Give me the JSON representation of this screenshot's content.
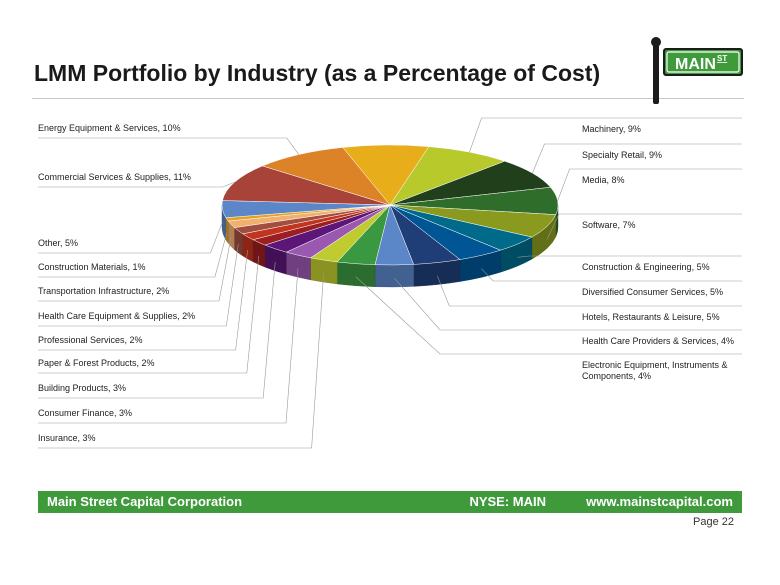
{
  "slide": {
    "title": "LMM Portfolio by Industry (as a Percentage of Cost)",
    "logo_text": "MAIN",
    "logo_superscript": "ST",
    "footer_company": "Main Street Capital Corporation",
    "footer_ticker": "NYSE: MAIN",
    "footer_url": "www.mainstcapital.com",
    "page_number": "Page 22"
  },
  "colors": {
    "brand_green": "#3f9a3b",
    "sign_green": "#3f9a3b",
    "pole": "#1c1c1c",
    "leader": "#9a9a9a"
  },
  "chart_data": {
    "type": "pie",
    "variant": "3d",
    "title": "",
    "slices": [
      {
        "label": "Machinery, 9%",
        "value": 9,
        "color": "#b7c92b",
        "side": "right"
      },
      {
        "label": "Specialty Retail, 9%",
        "value": 9,
        "color": "#213f1a",
        "side": "right"
      },
      {
        "label": "Media, 8%",
        "value": 8,
        "color": "#2f6d2a",
        "side": "right"
      },
      {
        "label": "Software, 7%",
        "value": 7,
        "color": "#8a9a1e",
        "side": "right"
      },
      {
        "label": "Construction & Engineering, 5%",
        "value": 5,
        "color": "#006a8a",
        "side": "right"
      },
      {
        "label": "Diversified Consumer Services, 5%",
        "value": 5,
        "color": "#005594",
        "side": "right"
      },
      {
        "label": "Hotels, Restaurants & Leisure, 5%",
        "value": 5,
        "color": "#1f3e78",
        "side": "right"
      },
      {
        "label": "Health Care Providers & Services, 4%",
        "value": 4,
        "color": "#5b86c8",
        "side": "right"
      },
      {
        "label": "Electronic Equipment, Instruments & Components, 4%",
        "value": 4,
        "color": "#3a9840",
        "side": "right"
      },
      {
        "label": "Insurance, 3%",
        "value": 3,
        "color": "#bfcb2e",
        "side": "left"
      },
      {
        "label": "Consumer Finance, 3%",
        "value": 3,
        "color": "#9b58b0",
        "side": "left"
      },
      {
        "label": "Building Products, 3%",
        "value": 3,
        "color": "#5c1678",
        "side": "left"
      },
      {
        "label": "Paper & Forest Products, 2%",
        "value": 2,
        "color": "#9b1e22",
        "side": "left"
      },
      {
        "label": "Professional Services, 2%",
        "value": 2,
        "color": "#c2341e",
        "side": "left"
      },
      {
        "label": "Health Care Equipment & Supplies, 2%",
        "value": 2,
        "color": "#a24e3e",
        "side": "left"
      },
      {
        "label": "Transportation Infrastructure, 2%",
        "value": 2,
        "color": "#f0b070",
        "side": "left"
      },
      {
        "label": "Construction Materials, 1%",
        "value": 1,
        "color": "#e8a020",
        "side": "left"
      },
      {
        "label": "Other, 5%",
        "value": 5,
        "color": "#5b86c8",
        "side": "left"
      },
      {
        "label": "Commercial Services & Supplies, 11%",
        "value": 11,
        "color": "#a8433a",
        "side": "left"
      },
      {
        "label": "Energy Equipment & Services, 10%",
        "value": 10,
        "color": "#dd8327",
        "side": "left"
      }
    ],
    "extra_slice": {
      "value": 9,
      "color": "#e7ad1a"
    },
    "legend": "none",
    "labels": "outside with leader lines"
  }
}
